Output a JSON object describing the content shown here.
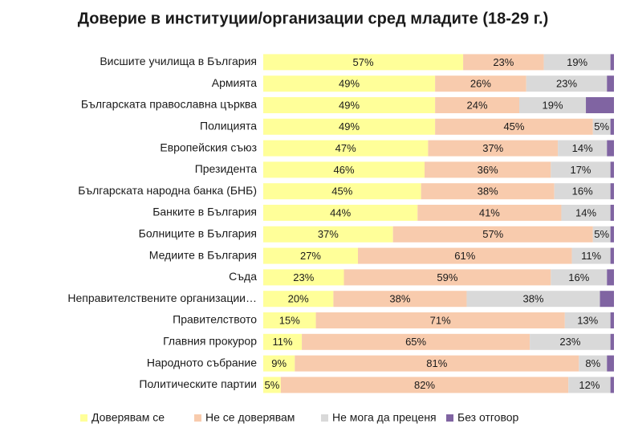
{
  "chart_data": {
    "type": "stacked-bar-horizontal",
    "title": "Доверие в институции/организации сред младите (18-29 г.)",
    "categories": [
      "Висшите училища в България",
      "Армията",
      "Българската православна църква",
      "Полицията",
      "Европейския съюз",
      "Президента",
      "Българската народна банка (БНБ)",
      "Банките в България",
      "Болниците в България",
      "Медиите в България",
      "Съда",
      "Неправителствените организации…",
      "Правителството",
      "Главния прокурор",
      "Народното събрание",
      "Политическите партии"
    ],
    "xlim": [
      0,
      100
    ],
    "series": [
      {
        "name": "Доверявам се",
        "color": "#ffff99",
        "values": [
          57,
          49,
          49,
          49,
          47,
          46,
          45,
          44,
          37,
          27,
          23,
          20,
          15,
          11,
          9,
          5
        ],
        "value_labels": [
          "57%",
          "49%",
          "49%",
          "49%",
          "47%",
          "46%",
          "45%",
          "44%",
          "37%",
          "27%",
          "23%",
          "20%",
          "15%",
          "11%",
          "9%",
          "5%"
        ]
      },
      {
        "name": "Не се доверявам",
        "color": "#f8cbad",
        "values": [
          23,
          26,
          24,
          45,
          37,
          36,
          38,
          41,
          57,
          61,
          59,
          38,
          71,
          65,
          81,
          82
        ],
        "value_labels": [
          "23%",
          "26%",
          "24%",
          "45%",
          "37%",
          "36%",
          "38%",
          "41%",
          "57%",
          "61%",
          "59%",
          "38%",
          "71%",
          "65%",
          "81%",
          "82%"
        ]
      },
      {
        "name": "Не мога да преценя",
        "color": "#d9d9d9",
        "values": [
          19,
          23,
          19,
          5,
          14,
          17,
          16,
          14,
          5,
          11,
          16,
          38,
          13,
          23,
          8,
          12
        ],
        "value_labels": [
          "19%",
          "23%",
          "19%",
          "5%",
          "14%",
          "17%",
          "16%",
          "14%",
          "5%",
          "11%",
          "16%",
          "38%",
          "13%",
          "23%",
          "8%",
          "12%"
        ]
      },
      {
        "name": "Без отговор",
        "color": "#8064a2",
        "values": [
          1,
          2,
          8,
          1,
          2,
          1,
          1,
          1,
          1,
          1,
          2,
          4,
          1,
          1,
          2,
          1
        ]
      }
    ]
  }
}
